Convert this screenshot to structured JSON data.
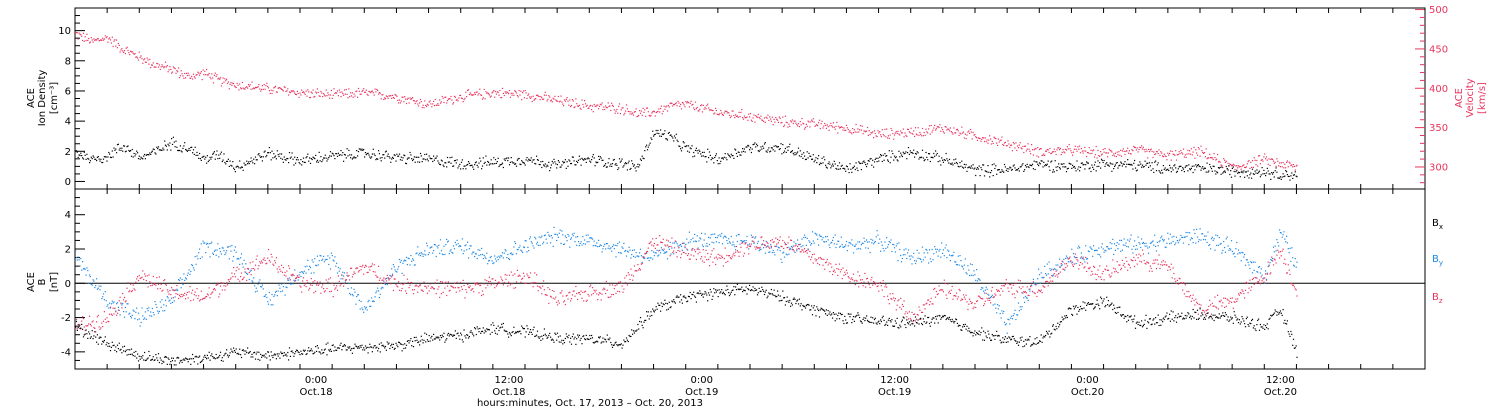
{
  "colors": {
    "black": "#000000",
    "red": "#e8355e",
    "blue": "#1e88e5"
  },
  "time_axis": {
    "label": "hours:minutes, Oct. 17, 2013 – Oct. 20, 2013",
    "ticks": [
      {
        "t": 15,
        "time": "0:00",
        "date": "Oct.18"
      },
      {
        "t": 27,
        "time": "12:00",
        "date": "Oct.18"
      },
      {
        "t": 39,
        "time": "0:00",
        "date": "Oct.19"
      },
      {
        "t": 51,
        "time": "12:00",
        "date": "Oct.19"
      },
      {
        "t": 63,
        "time": "0:00",
        "date": "Oct.20"
      },
      {
        "t": 75,
        "time": "12:00",
        "date": "Oct.20"
      }
    ]
  },
  "chart_data": [
    {
      "type": "scatter",
      "panel": "top",
      "ylabel_left": [
        "ACE",
        "Ion Density",
        "[cm⁻³]"
      ],
      "ylabel_right": [
        "ACE",
        "Velocity",
        "[km/s]"
      ],
      "xlim_hours": [
        0,
        84
      ],
      "ylim_left": [
        -0.5,
        11.5
      ],
      "ylim_right": [
        272,
        502
      ],
      "yticks_left": [
        0,
        2,
        4,
        6,
        8,
        10
      ],
      "yticks_right": [
        300,
        350,
        400,
        450,
        500
      ],
      "series": [
        {
          "axis": "left",
          "color": "black",
          "x": [
            0,
            1,
            2,
            3,
            4,
            5,
            6,
            7,
            8,
            9,
            10,
            12,
            14,
            16,
            18,
            20,
            22,
            24,
            26,
            28,
            30,
            32,
            34,
            35,
            36,
            37,
            38,
            40,
            42,
            44,
            46,
            48,
            50,
            52,
            54,
            56,
            58,
            60,
            62,
            64,
            66,
            68,
            70,
            72,
            74,
            75,
            76
          ],
          "values": [
            2.0,
            1.5,
            1.7,
            2.4,
            1.6,
            2.0,
            2.6,
            2.3,
            1.5,
            1.8,
            1.0,
            1.9,
            1.4,
            1.7,
            1.9,
            1.6,
            1.5,
            1.2,
            1.3,
            1.5,
            1.1,
            1.5,
            1.2,
            1.0,
            3.3,
            3.0,
            2.2,
            1.5,
            2.3,
            2.3,
            1.5,
            0.8,
            1.5,
            2.0,
            1.5,
            0.8,
            0.8,
            1.2,
            1.0,
            1.2,
            1.1,
            0.9,
            0.9,
            0.7,
            0.7,
            0.5,
            0.5
          ]
        },
        {
          "axis": "right",
          "color": "red",
          "x": [
            0,
            1,
            2,
            3,
            4,
            5,
            6,
            7,
            8,
            9,
            10,
            12,
            14,
            16,
            18,
            20,
            22,
            24,
            26,
            28,
            30,
            32,
            34,
            35,
            36,
            37,
            38,
            40,
            42,
            44,
            46,
            48,
            50,
            52,
            54,
            56,
            58,
            60,
            62,
            64,
            66,
            68,
            70,
            72,
            74,
            75,
            76
          ],
          "values": [
            470,
            460,
            465,
            450,
            440,
            430,
            425,
            415,
            420,
            410,
            405,
            400,
            395,
            392,
            395,
            390,
            380,
            390,
            395,
            393,
            385,
            378,
            375,
            368,
            370,
            378,
            380,
            370,
            365,
            358,
            355,
            350,
            342,
            345,
            350,
            340,
            330,
            320,
            322,
            318,
            322,
            315,
            320,
            300,
            310,
            305,
            300
          ]
        }
      ]
    },
    {
      "type": "scatter",
      "panel": "bottom",
      "ylabel_left": [
        "ACE",
        "B",
        "[nT]"
      ],
      "xlim_hours": [
        0,
        84
      ],
      "ylim": [
        -5,
        5.5
      ],
      "yticks": [
        -4,
        -2,
        0,
        2,
        4
      ],
      "legend": [
        "B_x",
        "B_y",
        "B_z"
      ],
      "legend_placement": "right",
      "series": [
        {
          "name": "Bx",
          "color": "black",
          "x": [
            0,
            2,
            4,
            6,
            8,
            10,
            12,
            14,
            16,
            18,
            20,
            22,
            24,
            26,
            28,
            30,
            32,
            34,
            36,
            38,
            40,
            42,
            44,
            46,
            48,
            50,
            52,
            54,
            56,
            58,
            60,
            62,
            64,
            66,
            68,
            70,
            72,
            74,
            75,
            76
          ],
          "values": [
            -2.5,
            -3.5,
            -4.2,
            -4.5,
            -4.3,
            -4.0,
            -4.2,
            -4.0,
            -3.8,
            -3.7,
            -3.6,
            -3.2,
            -3.0,
            -2.6,
            -2.8,
            -3.2,
            -3.2,
            -3.5,
            -1.5,
            -0.8,
            -0.5,
            -0.3,
            -0.8,
            -1.5,
            -2.0,
            -2.2,
            -2.3,
            -2.0,
            -2.8,
            -3.3,
            -3.4,
            -1.5,
            -1.0,
            -2.3,
            -2.0,
            -1.8,
            -2.0,
            -2.5,
            -1.5,
            -4.0
          ]
        },
        {
          "name": "By",
          "color": "blue",
          "x": [
            0,
            2,
            4,
            6,
            8,
            10,
            12,
            14,
            16,
            18,
            20,
            22,
            24,
            26,
            28,
            30,
            32,
            34,
            36,
            38,
            40,
            42,
            44,
            46,
            48,
            50,
            52,
            54,
            56,
            58,
            60,
            62,
            64,
            66,
            68,
            70,
            72,
            74,
            75,
            76
          ],
          "values": [
            1.5,
            -1.0,
            -2.0,
            -1.0,
            2.2,
            1.8,
            -1.0,
            0.8,
            1.5,
            -1.5,
            1.0,
            2.0,
            2.2,
            1.5,
            2.2,
            2.8,
            2.5,
            2.0,
            1.5,
            2.5,
            2.5,
            2.5,
            1.8,
            2.7,
            2.2,
            2.5,
            1.5,
            2.0,
            0.5,
            -2.5,
            0.5,
            1.5,
            2.2,
            2.3,
            2.5,
            2.8,
            2.0,
            0.5,
            3.0,
            1.0
          ]
        },
        {
          "name": "Bz",
          "color": "red",
          "x": [
            0,
            2,
            4,
            6,
            8,
            10,
            12,
            14,
            16,
            18,
            20,
            22,
            24,
            26,
            28,
            30,
            32,
            34,
            36,
            38,
            40,
            42,
            44,
            46,
            48,
            50,
            52,
            54,
            56,
            58,
            60,
            62,
            64,
            66,
            68,
            70,
            72,
            74,
            75,
            76
          ],
          "values": [
            -2.5,
            -2.0,
            0.5,
            -0.5,
            -0.8,
            0.5,
            1.5,
            0.0,
            -0.2,
            1.0,
            0.0,
            -0.2,
            -0.3,
            0.0,
            0.5,
            -1.0,
            -0.5,
            -0.2,
            2.5,
            1.8,
            1.5,
            2.3,
            2.5,
            1.5,
            0.5,
            0.0,
            -2.0,
            -0.3,
            -1.2,
            -0.2,
            -0.3,
            1.5,
            0.5,
            1.5,
            1.0,
            -1.5,
            -1.0,
            0.5,
            2.0,
            -0.5
          ]
        }
      ]
    }
  ]
}
